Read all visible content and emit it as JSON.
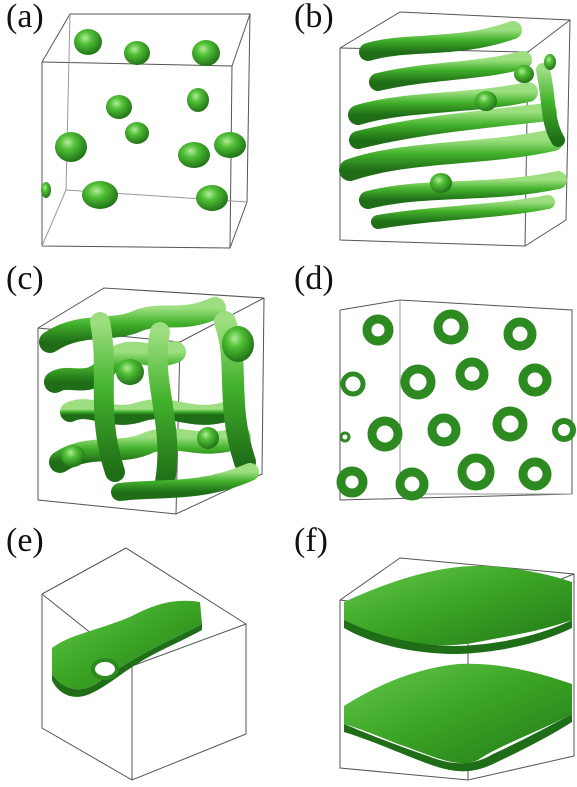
{
  "panels": [
    {
      "label": "(a)",
      "morphology": "spherical-micelles"
    },
    {
      "label": "(b)",
      "morphology": "cylinders"
    },
    {
      "label": "(c)",
      "morphology": "bicontinuous-network"
    },
    {
      "label": "(d)",
      "morphology": "hexagonal-rings"
    },
    {
      "label": "(e)",
      "morphology": "single-lamella-with-hole"
    },
    {
      "label": "(f)",
      "morphology": "stacked-lamellae"
    }
  ],
  "colors": {
    "isosurface": "#3fae2a",
    "isosurface_dark": "#1f6e17",
    "isosurface_light": "#8ad56c",
    "box_edge": "#555555"
  }
}
